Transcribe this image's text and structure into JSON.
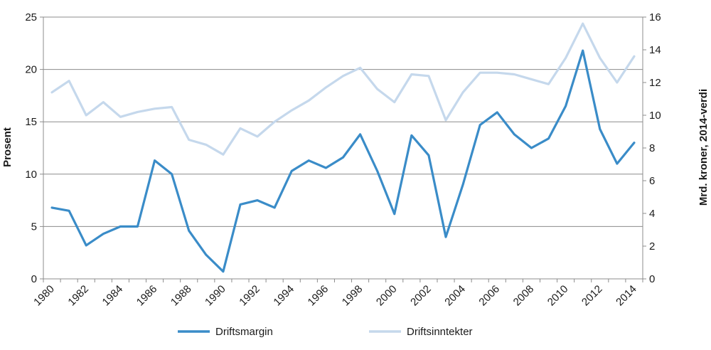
{
  "chart_data": {
    "type": "line",
    "x": [
      1980,
      1981,
      1982,
      1983,
      1984,
      1985,
      1986,
      1987,
      1988,
      1989,
      1990,
      1991,
      1992,
      1993,
      1994,
      1995,
      1996,
      1997,
      1998,
      1999,
      2000,
      2001,
      2002,
      2003,
      2004,
      2005,
      2006,
      2007,
      2008,
      2009,
      2010,
      2011,
      2012,
      2013,
      2014
    ],
    "x_tick_labels": [
      "1980",
      "1982",
      "1984",
      "1986",
      "1988",
      "1990",
      "1992",
      "1994",
      "1996",
      "1998",
      "2000",
      "2002",
      "2004",
      "2006",
      "2008",
      "2010",
      "2012",
      "2014"
    ],
    "series": [
      {
        "name": "Driftsmargin",
        "axis": "left",
        "color": "#3a8cc8",
        "values": [
          6.8,
          6.5,
          3.2,
          4.3,
          5.0,
          5.0,
          11.3,
          10.0,
          4.6,
          2.3,
          0.7,
          7.1,
          7.5,
          6.8,
          10.3,
          11.3,
          10.6,
          11.6,
          13.8,
          10.3,
          6.2,
          13.7,
          11.8,
          4.0,
          9.0,
          14.7,
          15.9,
          13.8,
          12.5,
          13.4,
          16.5,
          21.8,
          14.3,
          11.0,
          13.0
        ]
      },
      {
        "name": "Driftsinntekter",
        "axis": "right",
        "color": "#c5d8ec",
        "values": [
          11.4,
          12.1,
          10.0,
          10.8,
          9.9,
          10.2,
          10.4,
          10.5,
          8.5,
          8.2,
          7.6,
          9.2,
          8.7,
          9.6,
          10.3,
          10.9,
          11.7,
          12.4,
          12.9,
          11.6,
          10.8,
          12.5,
          12.4,
          9.7,
          11.4,
          12.6,
          12.6,
          12.5,
          12.2,
          11.9,
          13.5,
          15.6,
          13.5,
          12.0,
          13.6
        ]
      }
    ],
    "ylabel": "Prosent",
    "ylim": [
      0,
      25
    ],
    "y_ticks": [
      0,
      5,
      10,
      15,
      20,
      25
    ],
    "y2label": "Mrd. kroner, 2014-verdi",
    "y2lim": [
      0,
      16
    ],
    "y2_ticks": [
      0,
      2,
      4,
      6,
      8,
      10,
      12,
      14,
      16
    ],
    "grid": "horizontal",
    "legend_position": "bottom"
  }
}
